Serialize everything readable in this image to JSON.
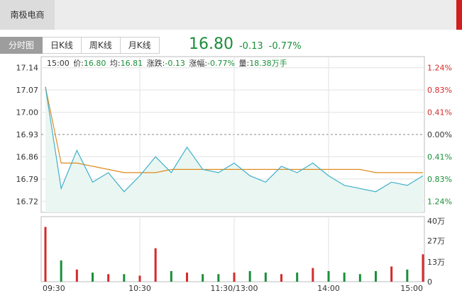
{
  "header": {
    "stock_name": "南极电商"
  },
  "tabs": [
    {
      "label": "分时图",
      "active": true
    },
    {
      "label": "日K线",
      "active": false
    },
    {
      "label": "周K线",
      "active": false
    },
    {
      "label": "月K线",
      "active": false
    }
  ],
  "quote": {
    "price": "16.80",
    "change": "-0.13",
    "change_pct": "-0.77%"
  },
  "info": {
    "time": "15:00",
    "price_label": "价:",
    "price": "16.80",
    "avg_label": "均:",
    "avg": "16.81",
    "change_label": "涨跌:",
    "change": "-0.13",
    "pct_label": "涨幅:",
    "pct": "-0.77%",
    "vol_label": "量:",
    "vol": "18.38万手"
  },
  "colors": {
    "up": "#d42a2a",
    "down": "#1a8f3a",
    "price_line": "#3fb0cc",
    "avg_line": "#e08a1e",
    "fill": "#eaf6f1"
  },
  "price_axis": {
    "labels": [
      "17.14",
      "17.07",
      "17.00",
      "16.93",
      "16.86",
      "16.79",
      "16.72"
    ],
    "pct_labels": [
      "1.24%",
      "0.83%",
      "0.41%",
      "0.00%",
      "0.41%",
      "0.83%",
      "1.24%"
    ],
    "prev_close": 16.93
  },
  "volume_axis": {
    "labels": [
      "40万",
      "27万",
      "13万",
      "0"
    ]
  },
  "time_axis": {
    "labels": [
      "09:30",
      "10:30",
      "11:30/13:00",
      "14:00",
      "15:00"
    ]
  },
  "chart_data": {
    "type": "line",
    "x": [
      "09:30",
      "09:40",
      "09:50",
      "10:00",
      "10:10",
      "10:20",
      "10:30",
      "10:40",
      "10:50",
      "11:00",
      "11:10",
      "11:20",
      "11:30/13:00",
      "13:10",
      "13:20",
      "13:30",
      "13:40",
      "13:50",
      "14:00",
      "14:10",
      "14:20",
      "14:30",
      "14:40",
      "14:50",
      "15:00"
    ],
    "series": [
      {
        "name": "价",
        "values": [
          17.08,
          16.76,
          16.88,
          16.78,
          16.81,
          16.75,
          16.8,
          16.86,
          16.81,
          16.89,
          16.82,
          16.81,
          16.84,
          16.8,
          16.78,
          16.83,
          16.81,
          16.84,
          16.8,
          16.77,
          16.76,
          16.75,
          16.78,
          16.77,
          16.8
        ]
      },
      {
        "name": "均",
        "values": [
          17.08,
          16.84,
          16.84,
          16.83,
          16.82,
          16.81,
          16.81,
          16.81,
          16.82,
          16.82,
          16.82,
          16.82,
          16.82,
          16.82,
          16.82,
          16.82,
          16.82,
          16.82,
          16.82,
          16.82,
          16.82,
          16.81,
          16.81,
          16.81,
          16.81
        ]
      }
    ],
    "volume_wan": [
      36,
      14,
      8,
      6,
      5,
      5,
      4,
      22,
      7,
      6,
      5,
      5,
      6,
      7,
      6,
      5,
      6,
      9,
      7,
      6,
      5,
      7,
      10,
      8,
      18
    ],
    "ylim": [
      16.685,
      17.175
    ],
    "volume_max": 40
  }
}
